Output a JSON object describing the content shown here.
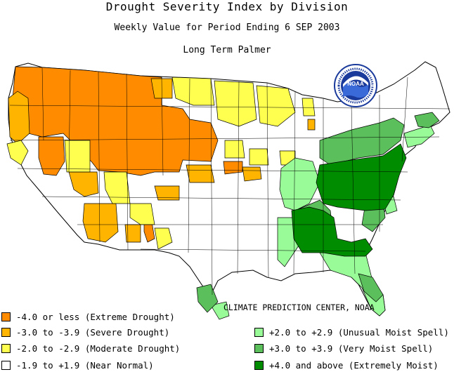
{
  "title": "Drought Severity Index by Division",
  "subtitle": "Weekly Value for Period Ending  6 SEP 2003",
  "index_name": "Long Term Palmer",
  "credit": "CLIMATE PREDICTION CENTER, NOAA",
  "logo": {
    "text": "NOAA",
    "icon": "noaa-logo"
  },
  "colors": {
    "extreme_drought": "#ff8c00",
    "severe_drought": "#ffb400",
    "moderate_drought": "#ffff50",
    "near_normal": "#ffffff",
    "unusual_moist": "#98fb98",
    "very_moist": "#5bbf5b",
    "extremely_moist": "#008c00",
    "borders": "#000000",
    "noaa_blue": "#1a3a9c"
  },
  "legend": {
    "left": [
      {
        "label": "-4.0 or less (Extreme Drought)",
        "color": "#ff8c00"
      },
      {
        "label": "-3.0 to -3.9 (Severe Drought)",
        "color": "#ffb400"
      },
      {
        "label": "-2.0 to -2.9 (Moderate Drought)",
        "color": "#ffff50"
      },
      {
        "label": "-1.9 to +1.9 (Near Normal)",
        "color": "#ffffff"
      }
    ],
    "right": [
      {
        "label": "+2.0 to +2.9 (Unusual Moist Spell)",
        "color": "#98fb98"
      },
      {
        "label": "+3.0 to +3.9 (Very Moist Spell)",
        "color": "#5bbf5b"
      },
      {
        "label": "+4.0 and above (Extremely Moist)",
        "color": "#008c00"
      }
    ]
  }
}
